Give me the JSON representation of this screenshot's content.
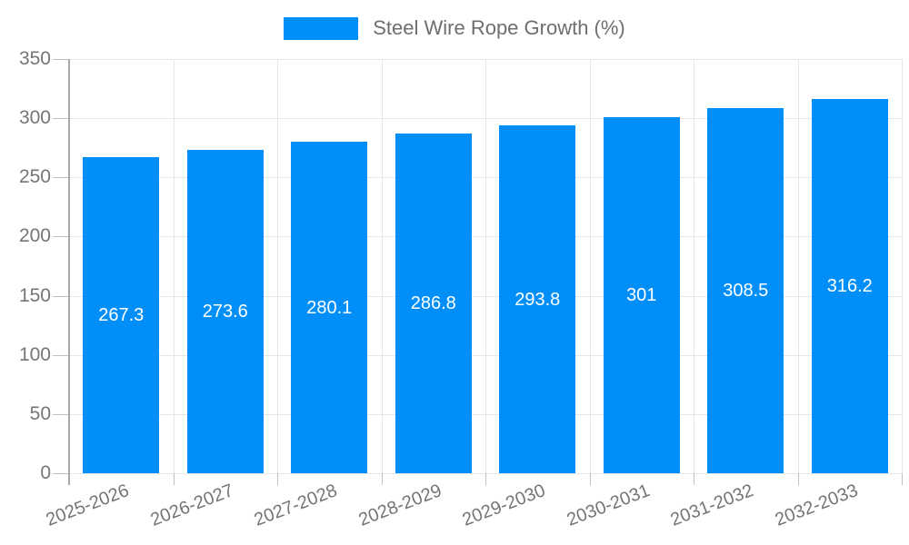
{
  "legend": {
    "label": "Steel Wire Rope Growth (%)",
    "swatch_color": "#008ff8"
  },
  "colors": {
    "bar": "#008ff8",
    "bar_label": "#ffffff",
    "grid_line": "#e6e6e6",
    "axis_line": "#a8a8a8",
    "tick_mark": "#bfbfbf",
    "axis_text": "#757575",
    "legend_text": "#6e6e6e",
    "background": "#ffffff"
  },
  "chart_data": {
    "type": "bar",
    "title": "Steel Wire Rope Growth (%)",
    "categories": [
      "2025-2026",
      "2026-2027",
      "2027-2028",
      "2028-2029",
      "2029-2030",
      "2030-2031",
      "2031-2032",
      "2032-2033"
    ],
    "series": [
      {
        "name": "Steel Wire Rope Growth (%)",
        "values": [
          267.3,
          273.6,
          280.1,
          286.8,
          293.8,
          301,
          308.5,
          316.2
        ]
      }
    ],
    "data_labels": [
      "267.3",
      "273.6",
      "280.1",
      "286.8",
      "293.8",
      "301",
      "308.5",
      "316.2"
    ],
    "xlabel": "",
    "ylabel": "",
    "ylim": [
      0,
      350
    ],
    "yticks": [
      0,
      50,
      100,
      150,
      200,
      250,
      300,
      350
    ],
    "grid": true,
    "legend_position": "top",
    "x_tick_label_rotation_deg": -21,
    "data_label_position": "inside-center"
  }
}
